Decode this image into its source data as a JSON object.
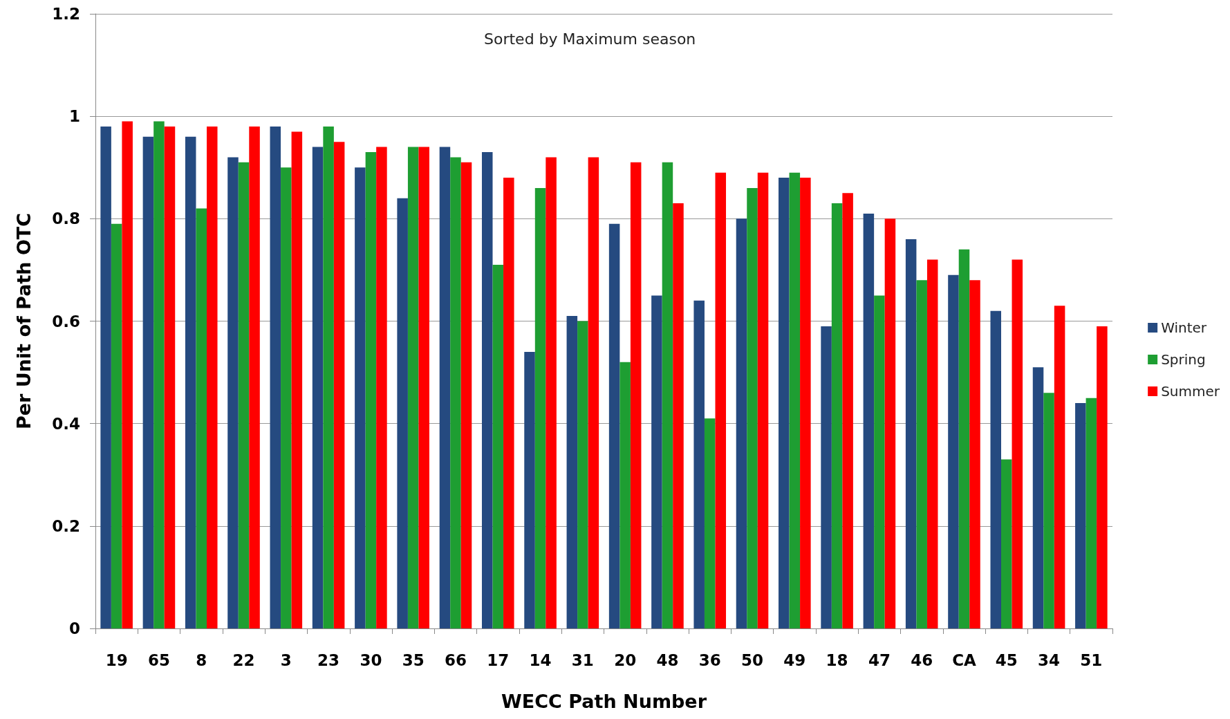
{
  "chart_data": {
    "type": "bar",
    "xlabel": "WECC Path Number",
    "ylabel": "Per Unit of Path OTC",
    "annotations": [
      "Sorted by Maximum season"
    ],
    "categories": [
      "19",
      "65",
      "8",
      "22",
      "3",
      "23",
      "30",
      "35",
      "66",
      "17",
      "14",
      "31",
      "20",
      "48",
      "36",
      "50",
      "49",
      "18",
      "47",
      "46",
      "CA",
      "45",
      "34",
      "51"
    ],
    "series": [
      {
        "name": "Winter",
        "color": "#254a80",
        "values": [
          0.98,
          0.96,
          0.96,
          0.92,
          0.98,
          0.94,
          0.9,
          0.84,
          0.94,
          0.93,
          0.54,
          0.61,
          0.79,
          0.65,
          0.64,
          0.8,
          0.88,
          0.59,
          0.81,
          0.76,
          0.69,
          0.62,
          0.51,
          0.44
        ]
      },
      {
        "name": "Spring",
        "color": "#1e9e32",
        "values": [
          0.79,
          0.99,
          0.82,
          0.91,
          0.9,
          0.98,
          0.93,
          0.94,
          0.92,
          0.71,
          0.86,
          0.6,
          0.52,
          0.91,
          0.41,
          0.86,
          0.89,
          0.83,
          0.65,
          0.68,
          0.74,
          0.33,
          0.46,
          0.45
        ]
      },
      {
        "name": "Summer",
        "color": "#ff0000",
        "values": [
          0.99,
          0.98,
          0.98,
          0.98,
          0.97,
          0.95,
          0.94,
          0.94,
          0.91,
          0.88,
          0.92,
          0.92,
          0.91,
          0.83,
          0.89,
          0.89,
          0.88,
          0.85,
          0.8,
          0.72,
          0.68,
          0.72,
          0.63,
          0.59
        ]
      }
    ],
    "ylim": [
      0,
      1.2
    ],
    "yticks": [
      0,
      0.2,
      0.4,
      0.6,
      0.8,
      1,
      1.2
    ],
    "grid": "y",
    "legend": "right"
  }
}
